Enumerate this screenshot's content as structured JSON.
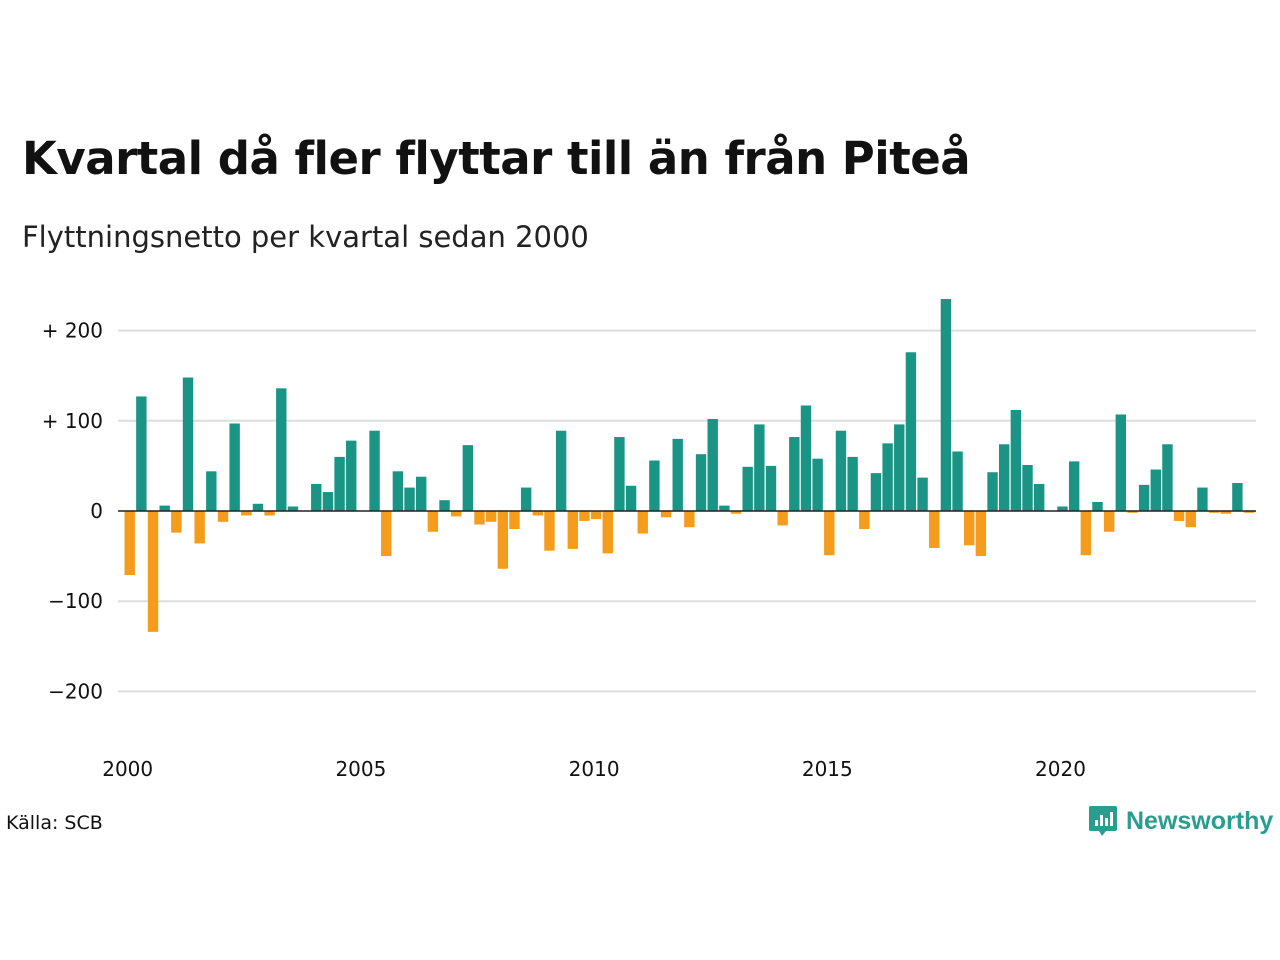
{
  "title": "Kvartal då fler flyttar till än från Piteå",
  "subtitle": "Flyttningsnetto per kvartal sedan 2000",
  "source": "Källa: SCB",
  "brand": {
    "name": "Newsworthy",
    "icon": "newsworthy-logo-icon"
  },
  "colors": {
    "positive": "#1a9585",
    "negative": "#f59c1c",
    "grid": "#dddddd",
    "zero": "#222222"
  },
  "chart_data": {
    "type": "bar",
    "x_start": "2000 Q1",
    "frequency": "quarterly",
    "ylim": [
      -240,
      240
    ],
    "y_ticks": [
      200,
      100,
      0,
      -100,
      -200
    ],
    "y_tick_labels": [
      "+ 200",
      "+ 100",
      "0",
      "−100",
      "−200"
    ],
    "x_ticks": [
      "2000",
      "2005",
      "2010",
      "2015",
      "2020"
    ],
    "grid": true,
    "values": [
      -71,
      127,
      -134,
      6,
      -24,
      148,
      -36,
      44,
      -12,
      97,
      -5,
      8,
      -5,
      136,
      5,
      0,
      30,
      21,
      60,
      78,
      0,
      89,
      -50,
      44,
      26,
      38,
      -23,
      12,
      -6,
      73,
      -15,
      -12,
      -64,
      -20,
      26,
      -5,
      -44,
      89,
      -42,
      -11,
      -9,
      -47,
      82,
      28,
      -25,
      56,
      -7,
      80,
      -18,
      63,
      102,
      6,
      -3,
      49,
      96,
      50,
      -16,
      82,
      117,
      58,
      -49,
      89,
      60,
      -20,
      42,
      75,
      96,
      176,
      37,
      -41,
      235,
      66,
      -38,
      -50,
      43,
      74,
      112,
      51,
      30,
      0,
      5,
      55,
      -49,
      10,
      -23,
      107,
      -2,
      29,
      46,
      74,
      -11,
      -18,
      26,
      -2,
      -3,
      31,
      -2
    ]
  }
}
